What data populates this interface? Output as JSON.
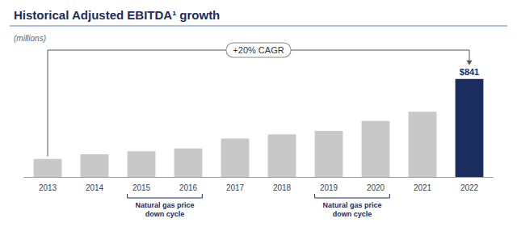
{
  "chart_data": {
    "type": "bar",
    "title": "Historical Adjusted EBITDA¹ growth",
    "subtitle": "(millions)",
    "categories": [
      "2013",
      "2014",
      "2015",
      "2016",
      "2017",
      "2018",
      "2019",
      "2020",
      "2021",
      "2022"
    ],
    "values": [
      155,
      195,
      220,
      245,
      330,
      365,
      395,
      480,
      560,
      841
    ],
    "colors": [
      "#c8c8c8",
      "#c8c8c8",
      "#c8c8c8",
      "#c8c8c8",
      "#c8c8c8",
      "#c8c8c8",
      "#c8c8c8",
      "#c8c8c8",
      "#c8c8c8",
      "#1b2d5e"
    ],
    "ylim": [
      0,
      950
    ],
    "grid": false,
    "tick_labels": "x",
    "annotations": [
      {
        "kind": "bar_label",
        "text": "$841",
        "category": "2022"
      },
      {
        "kind": "growth_bracket",
        "text": "+20% CAGR",
        "from": "2013",
        "to": "2022"
      },
      {
        "kind": "period_bracket",
        "text": "Natural gas price\ndown cycle",
        "from": "2015",
        "to": "2016"
      },
      {
        "kind": "period_bracket",
        "text": "Natural gas price\ndown cycle",
        "from": "2019",
        "to": "2020"
      }
    ]
  }
}
